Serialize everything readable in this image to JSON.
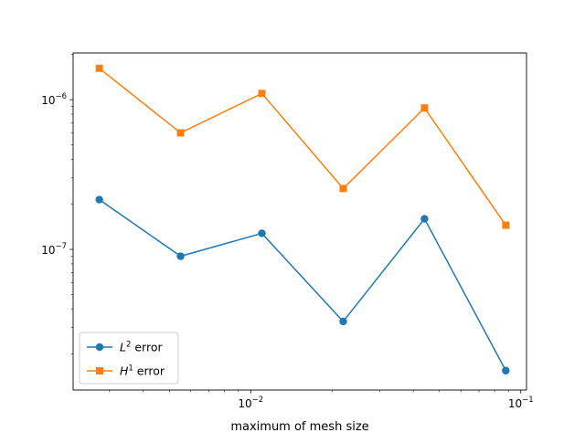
{
  "chart_data": {
    "type": "line",
    "title": "",
    "xlabel": "maximum of mesh size",
    "ylabel": "",
    "xscale": "log",
    "yscale": "log",
    "xlim": [
      0.0022,
      0.105
    ],
    "ylim": [
      1.15e-08,
      2.05e-06
    ],
    "grid": false,
    "legend_position": "lower-left",
    "x_ticks": [
      {
        "value": 0.01,
        "base": "10",
        "exp": "−2"
      },
      {
        "value": 0.1,
        "base": "10",
        "exp": "−1"
      }
    ],
    "y_ticks": [
      {
        "value": 1e-07,
        "base": "10",
        "exp": "−7"
      },
      {
        "value": 1e-06,
        "base": "10",
        "exp": "−6"
      }
    ],
    "x": [
      0.00275,
      0.0055,
      0.011,
      0.022,
      0.044,
      0.088
    ],
    "series": [
      {
        "name": "L² error",
        "name_base": "L",
        "name_sup": "2",
        "name_rest": " error",
        "color": "#1f77b4",
        "marker": "circle",
        "values": [
          2.15e-07,
          9e-08,
          1.28e-07,
          3.3e-08,
          1.6e-07,
          1.55e-08
        ]
      },
      {
        "name": "H¹ error",
        "name_base": "H",
        "name_sup": "1",
        "name_rest": " error",
        "color": "#ff7f0e",
        "marker": "square",
        "values": [
          1.62e-06,
          6e-07,
          1.1e-06,
          2.55e-07,
          8.8e-07,
          1.45e-07
        ]
      }
    ]
  }
}
